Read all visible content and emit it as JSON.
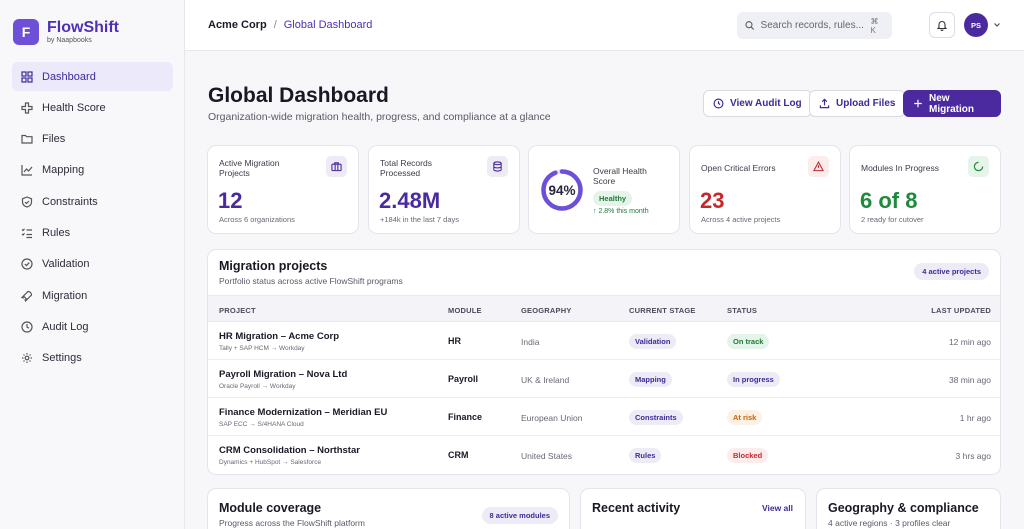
{
  "brand": {
    "letter": "F",
    "name": "FlowShift",
    "sub": "by Naapbooks"
  },
  "sidebar": {
    "items": [
      {
        "label": "Dashboard",
        "icon": "dashboard-icon",
        "active": true
      },
      {
        "label": "Health Score",
        "icon": "health-icon"
      },
      {
        "label": "Files",
        "icon": "folder-icon"
      },
      {
        "label": "Mapping",
        "icon": "mapping-icon"
      },
      {
        "label": "Constraints",
        "icon": "shield-icon"
      },
      {
        "label": "Rules",
        "icon": "rules-icon"
      },
      {
        "label": "Validation",
        "icon": "check-circle-icon"
      },
      {
        "label": "Migration",
        "icon": "rocket-icon"
      },
      {
        "label": "Audit Log",
        "icon": "clock-icon"
      },
      {
        "label": "Settings",
        "icon": "gear-icon"
      }
    ]
  },
  "topbar": {
    "breadcrumb": {
      "org": "Acme Corp",
      "separator": "/",
      "page": "Global Dashboard"
    },
    "search": {
      "placeholder": "Search records, rules...",
      "shortcut": "⌘ K"
    },
    "avatar_initials": "PS"
  },
  "header": {
    "title": "Global Dashboard",
    "subtitle": "Organization-wide migration health, progress, and compliance at a glance",
    "buttons": {
      "audit": "View Audit Log",
      "upload": "Upload Files",
      "new": "New Migration"
    }
  },
  "kpis": {
    "active": {
      "label": "Active Migration Projects",
      "value": "12",
      "sub": "Across 6 organizations"
    },
    "records": {
      "label": "Total Records Processed",
      "value": "2.48M",
      "sub": "+184k in the last 7 days"
    },
    "health": {
      "label": "Overall Health Score",
      "value": "94%",
      "score": 0.94,
      "badge": "Healthy",
      "trend": "↑ 2.8% this month"
    },
    "errors": {
      "label": "Open Critical Errors",
      "value": "23",
      "sub": "Across 4 active projects"
    },
    "modules": {
      "label": "Modules In Progress",
      "value": "6 of 8",
      "sub": "2 ready for cutover"
    }
  },
  "projects": {
    "title": "Migration projects",
    "subtitle": "Portfolio status across active FlowShift programs",
    "badge": "4 active projects",
    "columns": {
      "project": "PROJECT",
      "module": "MODULE",
      "geography": "GEOGRAPHY",
      "stage": "CURRENT STAGE",
      "status": "STATUS",
      "updated": "LAST UPDATED"
    },
    "rows": [
      {
        "name": "HR Migration – Acme Corp",
        "path": "Tally + SAP HCM → Workday",
        "module": "HR",
        "geography": "India",
        "stage": "Validation",
        "status": "On track",
        "updated": "12 min ago"
      },
      {
        "name": "Payroll Migration – Nova Ltd",
        "path": "Oracle Payroll → Workday",
        "module": "Payroll",
        "geography": "UK & Ireland",
        "stage": "Mapping",
        "status": "In progress",
        "updated": "38 min ago"
      },
      {
        "name": "Finance Modernization – Meridian EU",
        "path": "SAP ECC → S/4HANA Cloud",
        "module": "Finance",
        "geography": "European Union",
        "stage": "Constraints",
        "status": "At risk",
        "updated": "1 hr ago"
      },
      {
        "name": "CRM Consolidation – Northstar",
        "path": "Dynamics + HubSpot → Salesforce",
        "module": "CRM",
        "geography": "United States",
        "stage": "Rules",
        "status": "Blocked",
        "updated": "3 hrs ago"
      }
    ]
  },
  "status_colors": {
    "On track": {
      "bg": "#e5f4e8",
      "fg": "#1f7a37"
    },
    "In progress": {
      "bg": "#ecebf6",
      "fg": "#3e2a99"
    },
    "At risk": {
      "bg": "#fdf1e4",
      "fg": "#c2620c"
    },
    "Blocked": {
      "bg": "#fdecec",
      "fg": "#c9262b"
    }
  },
  "module_coverage": {
    "title": "Module coverage",
    "subtitle": "Progress across the FlowShift platform",
    "badge": "8 active modules"
  },
  "recent_activity": {
    "title": "Recent activity",
    "link": "View all"
  },
  "geography": {
    "title": "Geography & compliance",
    "subtitle": "4 active regions · 3 profiles clear"
  }
}
